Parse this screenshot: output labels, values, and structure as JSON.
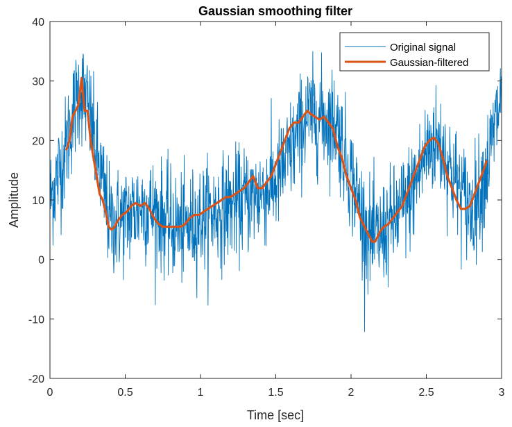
{
  "chart_data": {
    "type": "line",
    "title": "Gaussian smoothing filter",
    "xlabel": "Time [sec]",
    "ylabel": "Amplitude",
    "xlim": [
      0,
      3
    ],
    "ylim": [
      -20,
      40
    ],
    "xticks": [
      0,
      0.5,
      1,
      1.5,
      2,
      2.5,
      3
    ],
    "xtick_labels": [
      "0",
      "0.5",
      "1",
      "1.5",
      "2",
      "2.5",
      "3"
    ],
    "yticks": [
      -20,
      -10,
      0,
      10,
      20,
      30,
      40
    ],
    "ytick_labels": [
      "-20",
      "-10",
      "0",
      "10",
      "20",
      "30",
      "40"
    ],
    "grid": false,
    "legend_position": "top-right",
    "series": [
      {
        "name": "Original signal",
        "color": "#0072BD",
        "style": "thin noisy line",
        "noise_std": 4.5,
        "x": [
          0,
          0.1,
          0.15,
          0.2,
          0.25,
          0.3,
          0.4,
          0.5,
          0.6,
          0.7,
          0.8,
          0.9,
          1.0,
          1.1,
          1.2,
          1.3,
          1.4,
          1.5,
          1.6,
          1.7,
          1.8,
          1.9,
          2.0,
          2.1,
          2.15,
          2.2,
          2.3,
          2.4,
          2.5,
          2.55,
          2.6,
          2.7,
          2.8,
          2.9,
          3.0
        ],
        "y": [
          10,
          18,
          24,
          29,
          26,
          19,
          6,
          7,
          9,
          8,
          6,
          5,
          7,
          8,
          9,
          10,
          11,
          13,
          18,
          24,
          24,
          23,
          14,
          5,
          3,
          4,
          7,
          11,
          18,
          20,
          19,
          13,
          8,
          15,
          28
        ]
      },
      {
        "name": "Gaussian-filtered",
        "color": "#D95319",
        "style": "thick smooth line",
        "x": [
          0.11,
          0.13,
          0.15,
          0.17,
          0.19,
          0.21,
          0.23,
          0.25,
          0.27,
          0.29,
          0.31,
          0.33,
          0.35,
          0.37,
          0.39,
          0.41,
          0.43,
          0.45,
          0.48,
          0.51,
          0.54,
          0.57,
          0.6,
          0.63,
          0.66,
          0.69,
          0.72,
          0.75,
          0.78,
          0.81,
          0.84,
          0.87,
          0.9,
          0.93,
          0.96,
          0.99,
          1.02,
          1.05,
          1.08,
          1.11,
          1.14,
          1.17,
          1.2,
          1.23,
          1.26,
          1.29,
          1.32,
          1.35,
          1.38,
          1.41,
          1.44,
          1.47,
          1.5,
          1.53,
          1.56,
          1.59,
          1.62,
          1.65,
          1.68,
          1.71,
          1.73,
          1.76,
          1.79,
          1.82,
          1.85,
          1.88,
          1.91,
          1.94,
          1.97,
          2.0,
          2.03,
          2.06,
          2.09,
          2.12,
          2.14,
          2.16,
          2.18,
          2.2,
          2.22,
          2.25,
          2.28,
          2.31,
          2.34,
          2.37,
          2.4,
          2.43,
          2.46,
          2.49,
          2.52,
          2.55,
          2.58,
          2.61,
          2.64,
          2.67,
          2.7,
          2.73,
          2.76,
          2.79,
          2.82,
          2.85,
          2.88,
          2.9
        ],
        "y": [
          18.5,
          20,
          24,
          25,
          26,
          30.5,
          25,
          25,
          20,
          17,
          14,
          11,
          10,
          8,
          5.5,
          5,
          5.5,
          6.5,
          7.5,
          8,
          9,
          9.5,
          9,
          9.5,
          8.5,
          7,
          6,
          5.5,
          5.5,
          5.5,
          5.5,
          5.5,
          6,
          7,
          7.5,
          7.5,
          8,
          8.5,
          9,
          9.5,
          10,
          10.5,
          10.5,
          11,
          11.5,
          12,
          13,
          14,
          12,
          12,
          13,
          14,
          16,
          18,
          20,
          22,
          23,
          23,
          24,
          25,
          24.5,
          24,
          23.5,
          24,
          23,
          22,
          19,
          17,
          14,
          12,
          10,
          7,
          5.5,
          4,
          3,
          3,
          4,
          5,
          5.5,
          6,
          7,
          8,
          9,
          11,
          13,
          15,
          17,
          19,
          20,
          20.5,
          19.5,
          17,
          14,
          12,
          10,
          8.5,
          8.5,
          9,
          11,
          13,
          15,
          16.5
        ]
      }
    ]
  }
}
